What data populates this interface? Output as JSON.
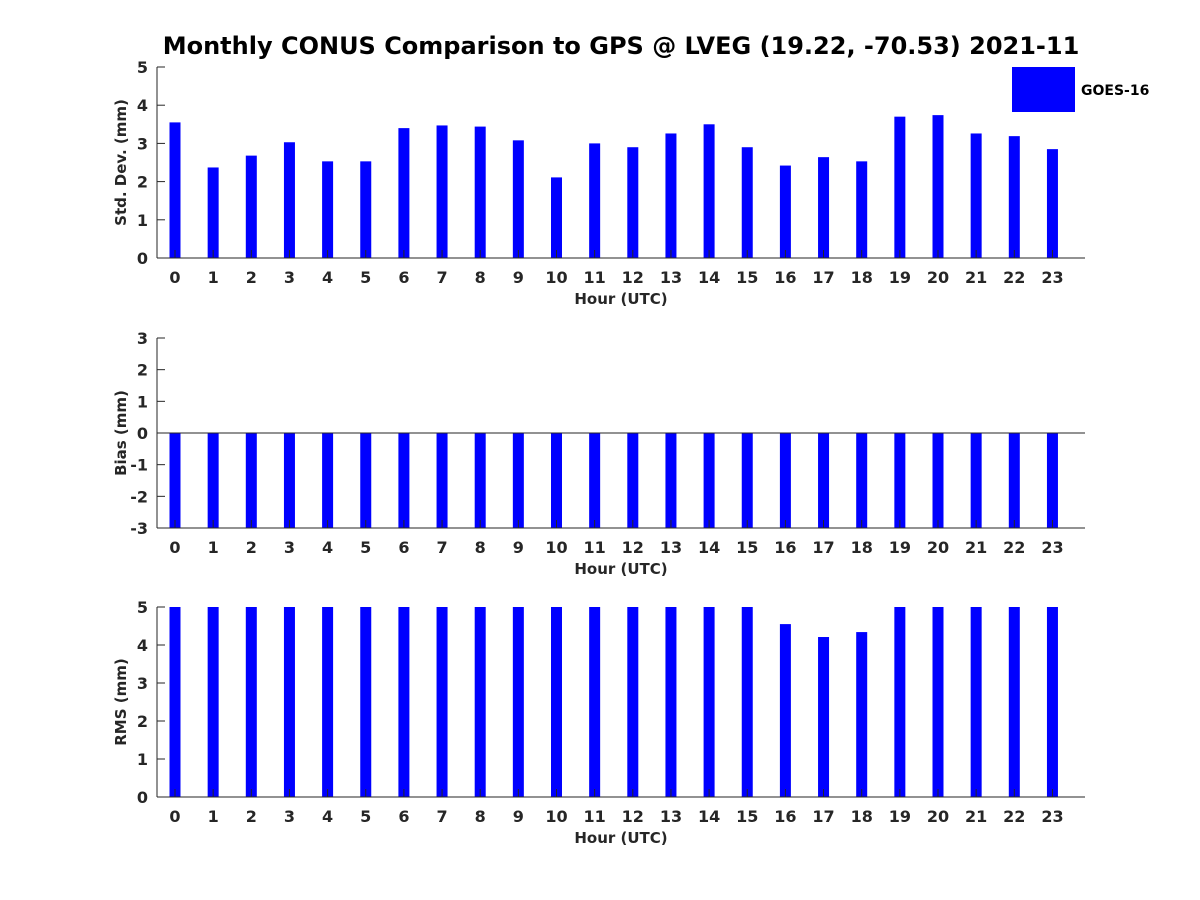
{
  "title": "Monthly CONUS Comparison to GPS @ LVEG (19.22, -70.53) 2021-11",
  "legend": {
    "label": "GOES-16",
    "color": "#0000ff",
    "placement": "top-right"
  },
  "chart_data": [
    {
      "type": "bar",
      "categories": [
        "0",
        "1",
        "2",
        "3",
        "4",
        "5",
        "6",
        "7",
        "8",
        "9",
        "10",
        "11",
        "12",
        "13",
        "14",
        "15",
        "16",
        "17",
        "18",
        "19",
        "20",
        "21",
        "22",
        "23"
      ],
      "series": [
        {
          "name": "GOES-16",
          "values": [
            3.55,
            2.37,
            2.68,
            3.03,
            2.53,
            2.53,
            3.4,
            3.47,
            3.44,
            3.08,
            2.11,
            3.0,
            2.9,
            3.26,
            3.5,
            2.9,
            2.42,
            2.64,
            2.53,
            3.7,
            3.74,
            3.26,
            3.19,
            2.85
          ]
        }
      ],
      "xlabel": "Hour (UTC)",
      "ylabel": "Std. Dev. (mm)",
      "ylim": [
        0,
        5
      ],
      "yticks": [
        "0",
        "1",
        "2",
        "3",
        "4",
        "5"
      ],
      "grid": false
    },
    {
      "type": "bar",
      "categories": [
        "0",
        "1",
        "2",
        "3",
        "4",
        "5",
        "6",
        "7",
        "8",
        "9",
        "10",
        "11",
        "12",
        "13",
        "14",
        "15",
        "16",
        "17",
        "18",
        "19",
        "20",
        "21",
        "22",
        "23"
      ],
      "series": [
        {
          "name": "GOES-16",
          "values": [
            -3,
            -3,
            -3,
            -3,
            -3,
            -3,
            -3,
            -3,
            -3,
            -3,
            -3,
            -3,
            -3,
            -3,
            -3,
            -3,
            -3,
            -3,
            -3,
            -3,
            -3,
            -3,
            -3,
            -3
          ]
        }
      ],
      "xlabel": "Hour (UTC)",
      "ylabel": "Bias (mm)",
      "ylim": [
        -3,
        3
      ],
      "yticks": [
        "-3",
        "-2",
        "-1",
        "0",
        "1",
        "2",
        "3"
      ],
      "grid": false
    },
    {
      "type": "bar",
      "categories": [
        "0",
        "1",
        "2",
        "3",
        "4",
        "5",
        "6",
        "7",
        "8",
        "9",
        "10",
        "11",
        "12",
        "13",
        "14",
        "15",
        "16",
        "17",
        "18",
        "19",
        "20",
        "21",
        "22",
        "23"
      ],
      "series": [
        {
          "name": "GOES-16",
          "values": [
            5,
            5,
            5,
            5,
            5,
            5,
            5,
            5,
            5,
            5,
            5,
            5,
            5,
            5,
            5,
            5,
            4.55,
            4.21,
            4.34,
            5,
            5,
            5,
            5,
            5
          ]
        }
      ],
      "xlabel": "Hour (UTC)",
      "ylabel": "RMS (mm)",
      "ylim": [
        0,
        5
      ],
      "yticks": [
        "0",
        "1",
        "2",
        "3",
        "4",
        "5"
      ],
      "grid": false
    }
  ]
}
